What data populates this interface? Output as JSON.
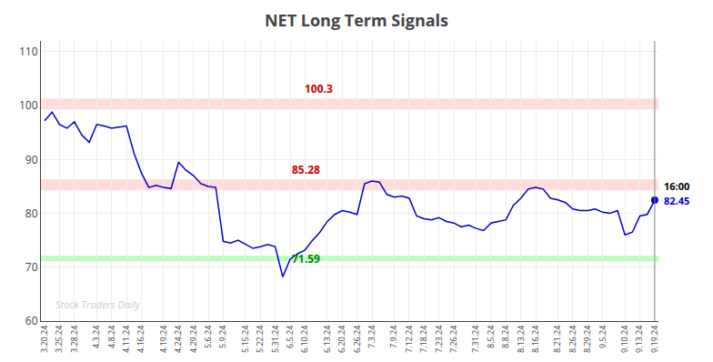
{
  "chart_data": {
    "type": "line",
    "title": "NET Long Term Signals",
    "categories": [
      "3.20.24",
      null,
      "3.25.24",
      null,
      "3.28.24",
      null,
      null,
      "4.3.24",
      null,
      "4.8.24",
      null,
      "4.11.24",
      null,
      "4.16.24",
      null,
      null,
      "4.19.24",
      null,
      "4.24.24",
      null,
      "4.29.24",
      null,
      "5.6.24",
      null,
      "5.9.24",
      null,
      null,
      "5.15.24",
      null,
      "5.22.24",
      null,
      "5.31.24",
      null,
      "6.5.24",
      null,
      "6.10.24",
      null,
      null,
      "6.13.24",
      null,
      "6.20.24",
      null,
      "6.26.24",
      null,
      "7.3.24",
      null,
      null,
      "7.9.24",
      null,
      "7.12.24",
      null,
      "7.18.24",
      null,
      "7.23.24",
      null,
      "7.26.24",
      null,
      null,
      "7.31.24",
      null,
      "8.5.24",
      null,
      "8.8.24",
      null,
      "8.13.24",
      null,
      "8.16.24",
      null,
      null,
      "8.21.24",
      null,
      "8.26.24",
      null,
      "8.29.24",
      null,
      "9.5.24",
      null,
      null,
      "9.10.24",
      null,
      "9.13.24",
      null,
      "9.19.24"
    ],
    "values": [
      97.2,
      98.8,
      96.5,
      95.8,
      97.0,
      94.5,
      93.2,
      96.5,
      96.2,
      95.8,
      96.0,
      96.2,
      91.2,
      87.5,
      84.8,
      85.2,
      84.8,
      84.6,
      89.5,
      88.0,
      87.0,
      85.5,
      85.0,
      84.8,
      74.8,
      74.5,
      75.0,
      74.2,
      73.5,
      73.8,
      74.2,
      73.8,
      68.2,
      71.5,
      72.5,
      73.2,
      75.0,
      76.5,
      78.5,
      79.8,
      80.5,
      80.2,
      79.8,
      85.5,
      86.0,
      85.8,
      83.5,
      83.0,
      83.2,
      82.8,
      79.5,
      79.0,
      78.8,
      79.2,
      78.5,
      78.2,
      77.5,
      77.8,
      77.2,
      76.8,
      78.2,
      78.5,
      78.8,
      81.5,
      82.8,
      84.5,
      84.8,
      84.5,
      82.8,
      82.5,
      82.0,
      80.8,
      80.5,
      80.5,
      80.8,
      80.2,
      80.0,
      80.5,
      76.0,
      76.5,
      79.5,
      79.8,
      82.45
    ],
    "color": "#0000cc",
    "reference_lines": [
      {
        "value": 100.3,
        "label": "100.3",
        "color": "#ffcccc",
        "label_color": "#cc0000"
      },
      {
        "value": 85.28,
        "label": "85.28",
        "color": "#ffcccc",
        "label_color": "#cc0000"
      },
      {
        "value": 71.59,
        "label": "71.59",
        "color": "#aaffaa",
        "label_color": "#008800"
      }
    ],
    "end_annotations": [
      {
        "text": "16:00",
        "color": "#000000"
      },
      {
        "text": "82.45",
        "color": "#0000cc"
      }
    ],
    "watermark": {
      "text": "Stock Traders Daily",
      "color": "#cccccc"
    },
    "ylim": [
      60,
      112
    ],
    "yticks": [
      60,
      70,
      80,
      90,
      100,
      110
    ],
    "grid": true
  }
}
